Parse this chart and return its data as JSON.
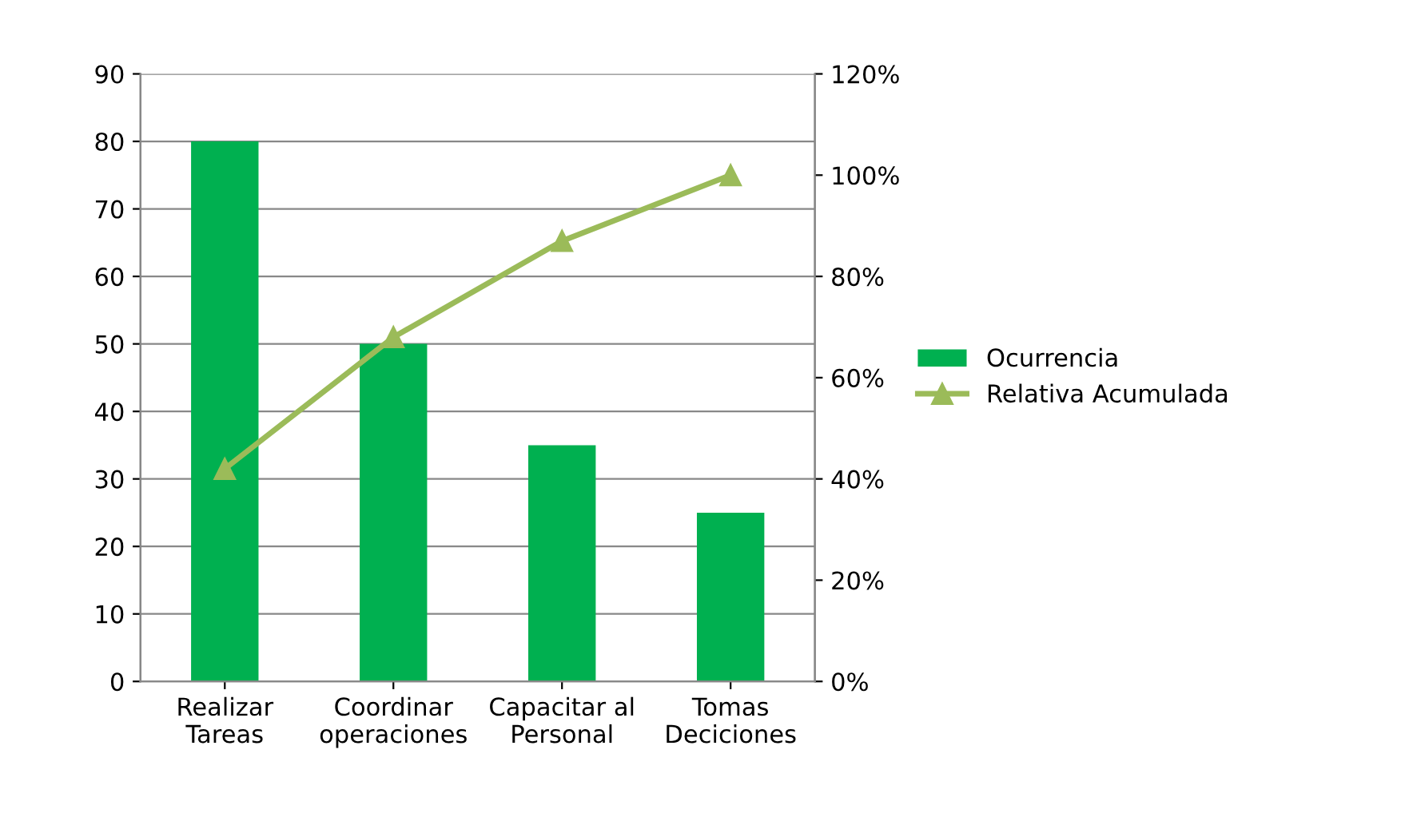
{
  "chart_data": {
    "type": "bar",
    "categories": [
      "Realizar\nTareas",
      "Coordinar\noperaciones",
      "Capacitar al\nPersonal",
      "Tomas\nDeciciones"
    ],
    "series": [
      {
        "name": "Ocurrencia",
        "color": "#00b050",
        "values": [
          80,
          50,
          35,
          25
        ]
      },
      {
        "name": "Relativa Acumulada",
        "type": "line",
        "axis": "y2",
        "color": "#9bbb59",
        "marker": "triangle",
        "values": [
          42,
          68,
          87,
          100
        ]
      }
    ],
    "ylim": [
      0,
      90
    ],
    "yticks": [
      0,
      10,
      20,
      30,
      40,
      50,
      60,
      70,
      80,
      90
    ],
    "y2lim": [
      0,
      120
    ],
    "y2ticks": [
      {
        "value": 0,
        "label": "0%"
      },
      {
        "value": 20,
        "label": "20%"
      },
      {
        "value": 40,
        "label": "40%"
      },
      {
        "value": 60,
        "label": "60%"
      },
      {
        "value": 80,
        "label": "80%"
      },
      {
        "value": 100,
        "label": "100%"
      },
      {
        "value": 120,
        "label": "120%"
      }
    ],
    "grid": "y",
    "legend": "right"
  }
}
